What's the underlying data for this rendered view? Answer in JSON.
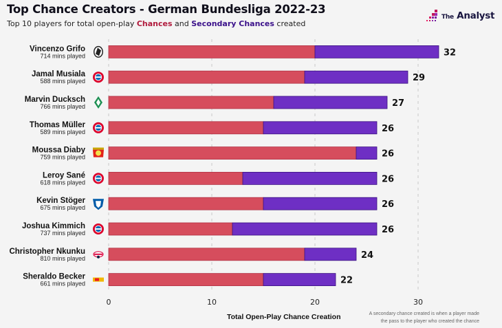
{
  "header": {
    "title": "Top Chance Creators - German Bundesliga 2022-23",
    "subtitle_prefix": "Top 10 players for total open-play ",
    "subtitle_chances": "Chances",
    "subtitle_mid": " and ",
    "subtitle_secondary": "Secondary Chances",
    "subtitle_suffix": " created"
  },
  "brand": {
    "the": "The",
    "name": "Analyst",
    "logo_icon": "pixel-stairs-logo"
  },
  "footer": {
    "note_line1": "A secondary chance created is when a player made",
    "note_line2": "the pass to the player who created the chance"
  },
  "colors": {
    "chances": "#d64d5d",
    "chances_border": "#b13345",
    "secondary": "#6e2fc4",
    "secondary_border": "#3b1380",
    "grid": "#c8c8c8",
    "background": "#f4f4f4"
  },
  "chart_data": {
    "type": "bar",
    "orientation": "horizontal",
    "stacked": true,
    "title": "Top Chance Creators - German Bundesliga 2022-23",
    "subtitle": "Top 10 players for total open-play Chances and Secondary Chances created",
    "xlabel": "Total Open-Play Chance Creation",
    "ylabel": "",
    "xlim": [
      0,
      34
    ],
    "xticks": [
      0,
      10,
      20,
      30
    ],
    "grid": "vertical dashed",
    "categories": [
      "Vincenzo Grifo",
      "Jamal Musiala",
      "Marvin Ducksch",
      "Thomas Müller",
      "Moussa Diaby",
      "Leroy Sané",
      "Kevin Stöger",
      "Joshua Kimmich",
      "Christopher Nkunku",
      "Sheraldo Becker"
    ],
    "minutes_labels": [
      "714 mins played",
      "588 mins played",
      "766 mins played",
      "589 mins played",
      "759 mins played",
      "618 mins played",
      "675 mins played",
      "737 mins played",
      "810 mins played",
      "661 mins played"
    ],
    "club_icons": [
      "freiburg-crest-icon",
      "bayern-crest-icon",
      "bremen-crest-icon",
      "bayern-crest-icon",
      "leverkusen-crest-icon",
      "bayern-crest-icon",
      "bochum-crest-icon",
      "bayern-crest-icon",
      "leipzig-crest-icon",
      "union-berlin-crest-icon"
    ],
    "series": [
      {
        "name": "Chances",
        "values": [
          20,
          19,
          16,
          15,
          24,
          13,
          15,
          12,
          19,
          15
        ]
      },
      {
        "name": "Secondary Chances",
        "values": [
          12,
          10,
          11,
          11,
          2,
          13,
          11,
          14,
          5,
          7
        ]
      }
    ],
    "totals": [
      32,
      29,
      27,
      26,
      26,
      26,
      26,
      26,
      24,
      22
    ],
    "legend": "inline in subtitle"
  }
}
